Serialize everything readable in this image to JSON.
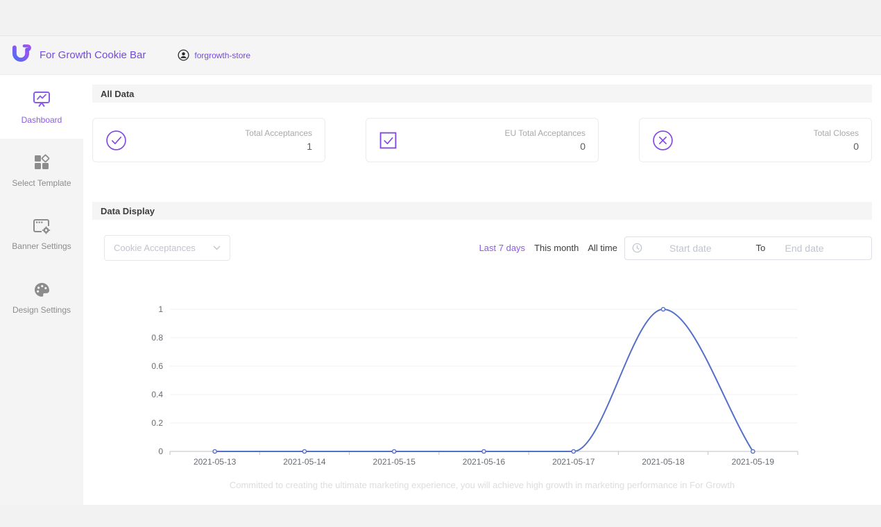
{
  "colors": {
    "accent_purple": "#7449e0",
    "active_link_purple": "#8a5ce8",
    "stat_icon_purple": "#8347e5",
    "chart_line_blue": "#5470c6",
    "sidebar_gray": "#f4f4f5",
    "band_gray": "#f5f5f6",
    "muted_text": "#8c8c8c"
  },
  "header": {
    "app_title": "For Growth Cookie Bar",
    "store_name": "forgrowth-store"
  },
  "sidebar": {
    "items": [
      {
        "label": "Dashboard",
        "icon": "dashboard-icon",
        "active": true
      },
      {
        "label": "Select Template",
        "icon": "select-template-icon",
        "active": false
      },
      {
        "label": "Banner Settings",
        "icon": "banner-settings-icon",
        "active": false
      },
      {
        "label": "Design Settings",
        "icon": "design-settings-icon",
        "active": false
      }
    ]
  },
  "all_data": {
    "title": "All Data",
    "cards": [
      {
        "icon": "check-circle-icon",
        "label": "Total Acceptances",
        "value": "1"
      },
      {
        "icon": "check-square-icon",
        "label": "EU Total Acceptances",
        "value": "0"
      },
      {
        "icon": "close-circle-icon",
        "label": "Total Closes",
        "value": "0"
      }
    ]
  },
  "data_display": {
    "title": "Data Display",
    "metric_select": {
      "value": "Cookie Acceptances"
    },
    "quick_filters": [
      {
        "label": "Last 7 days",
        "active": true
      },
      {
        "label": "This month",
        "active": false
      },
      {
        "label": "All time",
        "active": false
      }
    ],
    "date_range": {
      "start_placeholder": "Start date",
      "separator": "To",
      "end_placeholder": "End date"
    }
  },
  "chart_data": {
    "type": "line",
    "title": "",
    "xlabel": "",
    "ylabel": "",
    "x": [
      "2021-05-13",
      "2021-05-14",
      "2021-05-15",
      "2021-05-16",
      "2021-05-17",
      "2021-05-18",
      "2021-05-19"
    ],
    "series": [
      {
        "name": "Cookie Acceptances",
        "values": [
          0,
          0,
          0,
          0,
          0,
          1,
          0
        ]
      }
    ],
    "ylim": [
      0,
      1
    ],
    "yticks": [
      0,
      0.2,
      0.4,
      0.6,
      0.8,
      1
    ],
    "line_color": "#5470c6",
    "marker": "hollow-circle",
    "smooth": true,
    "grid": true,
    "legend_position": "none"
  },
  "footer_note": "Committed to creating the ultimate marketing experience, you will achieve high growth in marketing performance in For Growth"
}
